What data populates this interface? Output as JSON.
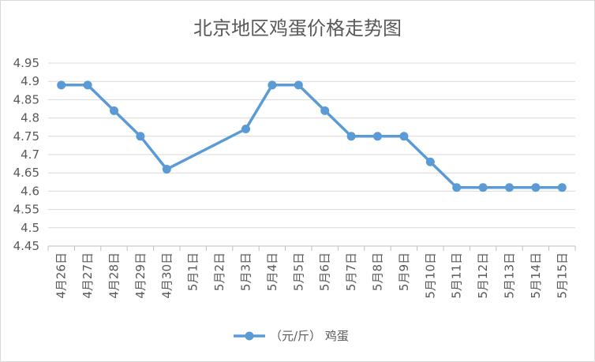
{
  "chart_data": {
    "type": "line",
    "title": "北京地区鸡蛋价格走势图",
    "xlabel": "",
    "ylabel": "",
    "categories": [
      "4月26日",
      "4月27日",
      "4月28日",
      "4月29日",
      "4月30日",
      "5月1日",
      "5月2日",
      "5月3日",
      "5月4日",
      "5月5日",
      "5月6日",
      "5月7日",
      "5月8日",
      "5月9日",
      "5月10日",
      "5月11日",
      "5月12日",
      "5月13日",
      "5月14日",
      "5月15日"
    ],
    "series": [
      {
        "name": "（元/斤） 鸡蛋",
        "color": "#5b9bd5",
        "values": [
          4.89,
          4.89,
          4.82,
          4.75,
          4.66,
          null,
          null,
          4.77,
          4.89,
          4.89,
          4.82,
          4.75,
          4.75,
          4.75,
          4.68,
          4.61,
          4.61,
          4.61,
          4.61,
          4.61
        ]
      }
    ],
    "ylim": [
      4.45,
      4.95
    ],
    "yticks": [
      "4.45",
      "4.5",
      "4.55",
      "4.6",
      "4.65",
      "4.7",
      "4.75",
      "4.8",
      "4.85",
      "4.9",
      "4.95"
    ],
    "grid": true,
    "legend_position": "bottom"
  }
}
